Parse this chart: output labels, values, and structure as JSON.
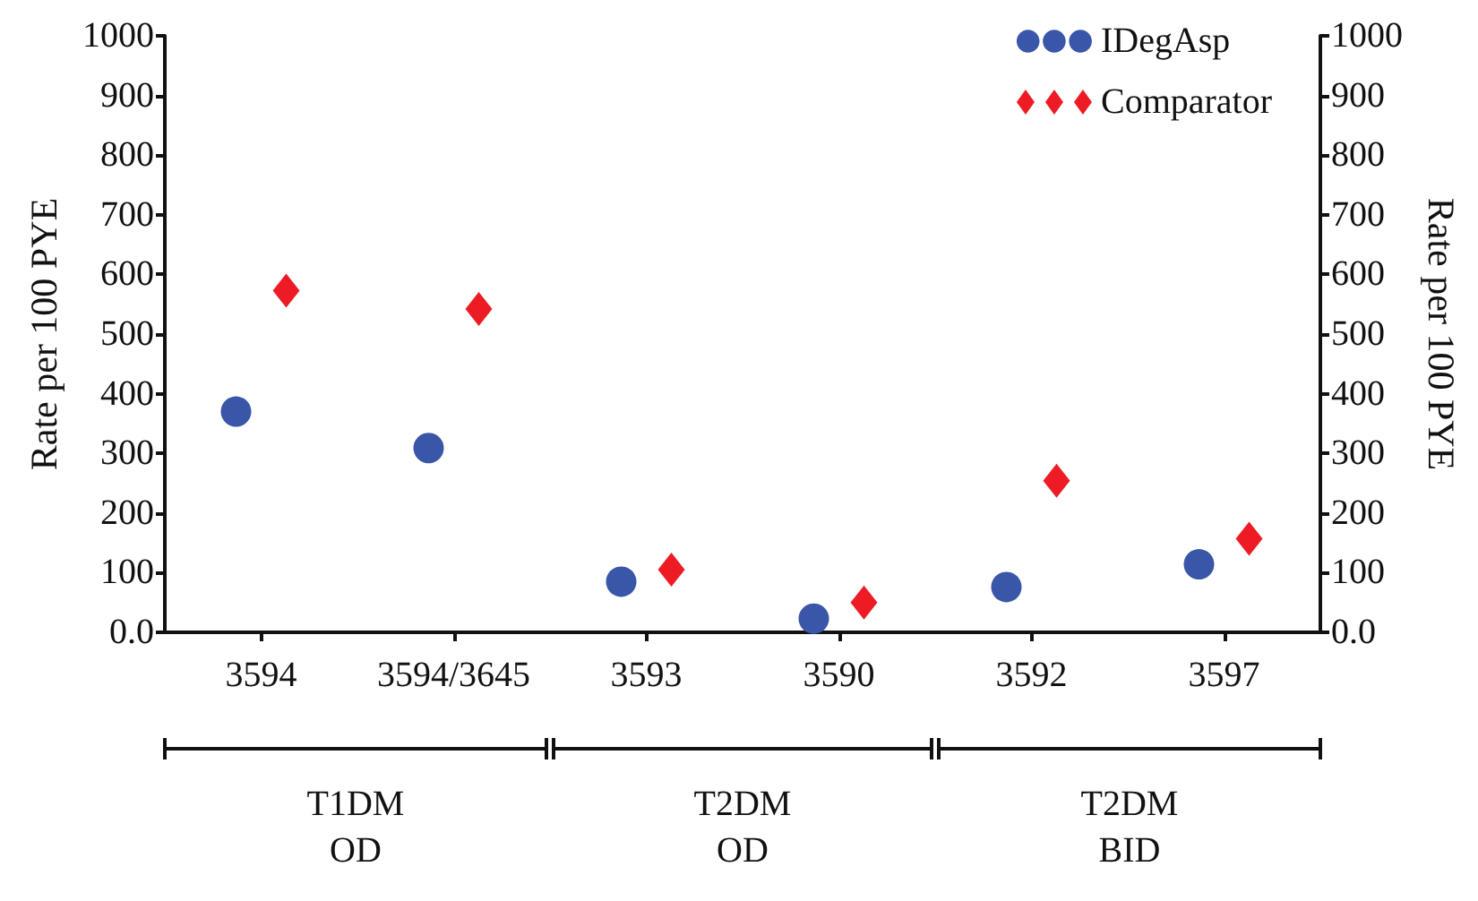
{
  "chart_data": {
    "type": "scatter",
    "categories": [
      "3594",
      "3594/3645",
      "3593",
      "3590",
      "3592",
      "3597"
    ],
    "series": [
      {
        "name": "IDegAsp",
        "color": "#3a56a8",
        "marker": "circle",
        "values": [
          370,
          309,
          85,
          23,
          76,
          114
        ]
      },
      {
        "name": "Comparator",
        "color": "#ed1c24",
        "marker": "diamond",
        "values": [
          573,
          542,
          105,
          50,
          254,
          157
        ]
      }
    ],
    "ylabel": "Rate per 100 PYE",
    "y2label": "Rate per 100 PYE",
    "ylim": [
      0,
      1000
    ],
    "yticks": [
      {
        "value": 0,
        "label": "0.0"
      },
      100,
      200,
      300,
      400,
      500,
      600,
      700,
      800,
      900,
      1000
    ],
    "y2lim": [
      0,
      1000
    ],
    "y2ticks": [
      {
        "value": 0,
        "label": "0.0"
      },
      100,
      200,
      300,
      400,
      500,
      600,
      700,
      800,
      900,
      1000
    ],
    "annotations": [
      "T1DM\nOD",
      "T2DM\nOD",
      "T2DM\nBID"
    ],
    "legend": "top right",
    "grid": false
  }
}
